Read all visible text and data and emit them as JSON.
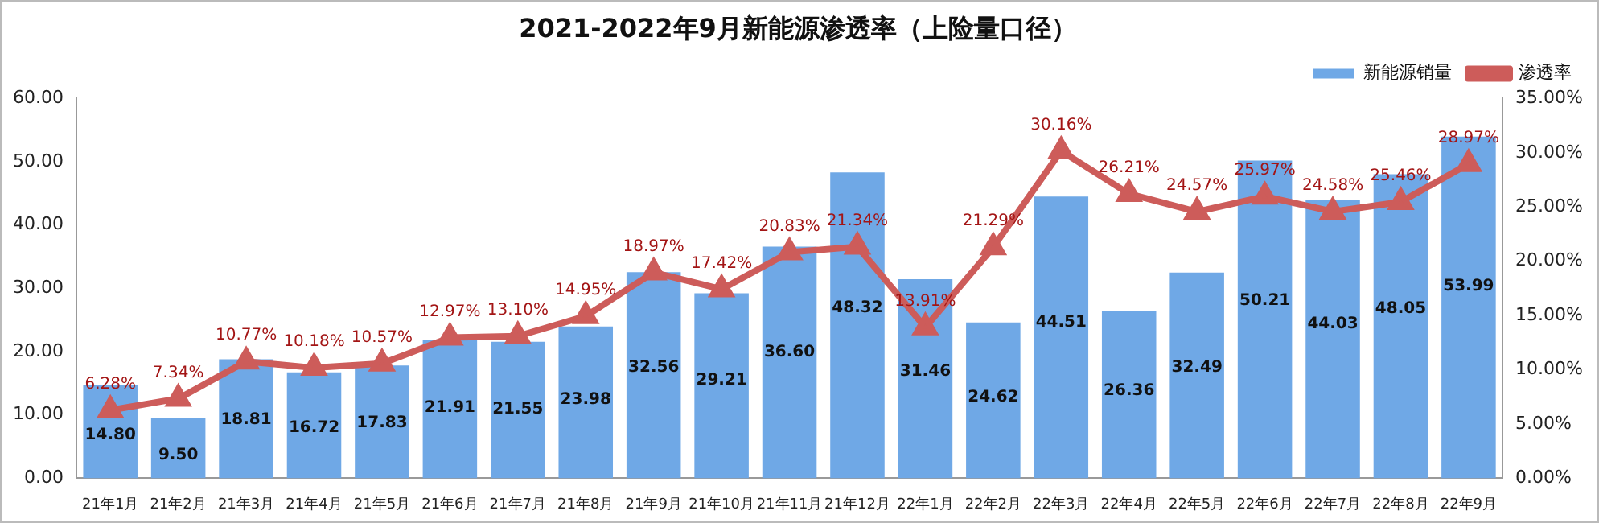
{
  "chart_data": {
    "type": "bar",
    "title": "2021-2022年9月新能源渗透率（上险量口径）",
    "categories": [
      "21年1月",
      "21年2月",
      "21年3月",
      "21年4月",
      "21年5月",
      "21年6月",
      "21年7月",
      "21年8月",
      "21年9月",
      "21年10月",
      "21年11月",
      "21年12月",
      "22年1月",
      "22年2月",
      "22年3月",
      "22年4月",
      "22年5月",
      "22年6月",
      "22年7月",
      "22年8月",
      "22年9月"
    ],
    "series": [
      {
        "name": "新能源销量",
        "color": "#6fa8e6",
        "values": [
          14.8,
          9.5,
          18.81,
          16.72,
          17.83,
          21.91,
          21.55,
          23.98,
          32.56,
          29.21,
          36.6,
          48.32,
          31.46,
          24.62,
          44.51,
          26.36,
          32.49,
          50.21,
          44.03,
          48.05,
          53.99
        ],
        "value_labels": [
          "14.80",
          "9.50",
          "18.81",
          "16.72",
          "17.83",
          "21.91",
          "21.55",
          "23.98",
          "32.56",
          "29.21",
          "36.60",
          "48.32",
          "31.46",
          "24.62",
          "44.51",
          "26.36",
          "32.49",
          "50.21",
          "44.03",
          "48.05",
          "53.99"
        ]
      },
      {
        "name": "渗透率",
        "type": "line",
        "axis": "y2",
        "color": "#cd5c5a",
        "marker": "triangle",
        "values": [
          6.28,
          7.34,
          10.77,
          10.18,
          10.57,
          12.97,
          13.1,
          14.95,
          18.97,
          17.42,
          20.83,
          21.34,
          13.91,
          21.29,
          30.16,
          26.21,
          24.57,
          25.97,
          24.58,
          25.46,
          28.97
        ],
        "value_labels": [
          "6.28%",
          "7.34%",
          "10.77%",
          "10.18%",
          "10.57%",
          "12.97%",
          "13.10%",
          "14.95%",
          "18.97%",
          "17.42%",
          "20.83%",
          "21.34%",
          "13.91%",
          "21.29%",
          "30.16%",
          "26.21%",
          "24.57%",
          "25.97%",
          "24.58%",
          "25.46%",
          "28.97%"
        ]
      }
    ],
    "ylim": [
      0,
      60
    ],
    "yticks": [
      {
        "value": 0,
        "label": "0.00"
      },
      {
        "value": 10,
        "label": "10.00"
      },
      {
        "value": 20,
        "label": "20.00"
      },
      {
        "value": 30,
        "label": "30.00"
      },
      {
        "value": 40,
        "label": "40.00"
      },
      {
        "value": 50,
        "label": "50.00"
      },
      {
        "value": 60,
        "label": "60.00"
      }
    ],
    "y2lim": [
      0,
      35
    ],
    "y2ticks": [
      {
        "value": 0,
        "label": "0.00%"
      },
      {
        "value": 5,
        "label": "5.00%"
      },
      {
        "value": 10,
        "label": "10.00%"
      },
      {
        "value": 15,
        "label": "15.00%"
      },
      {
        "value": 20,
        "label": "20.00%"
      },
      {
        "value": 25,
        "label": "25.00%"
      },
      {
        "value": 30,
        "label": "30.00%"
      },
      {
        "value": 35,
        "label": "35.00%"
      }
    ],
    "grid": false,
    "legend": "top right"
  }
}
